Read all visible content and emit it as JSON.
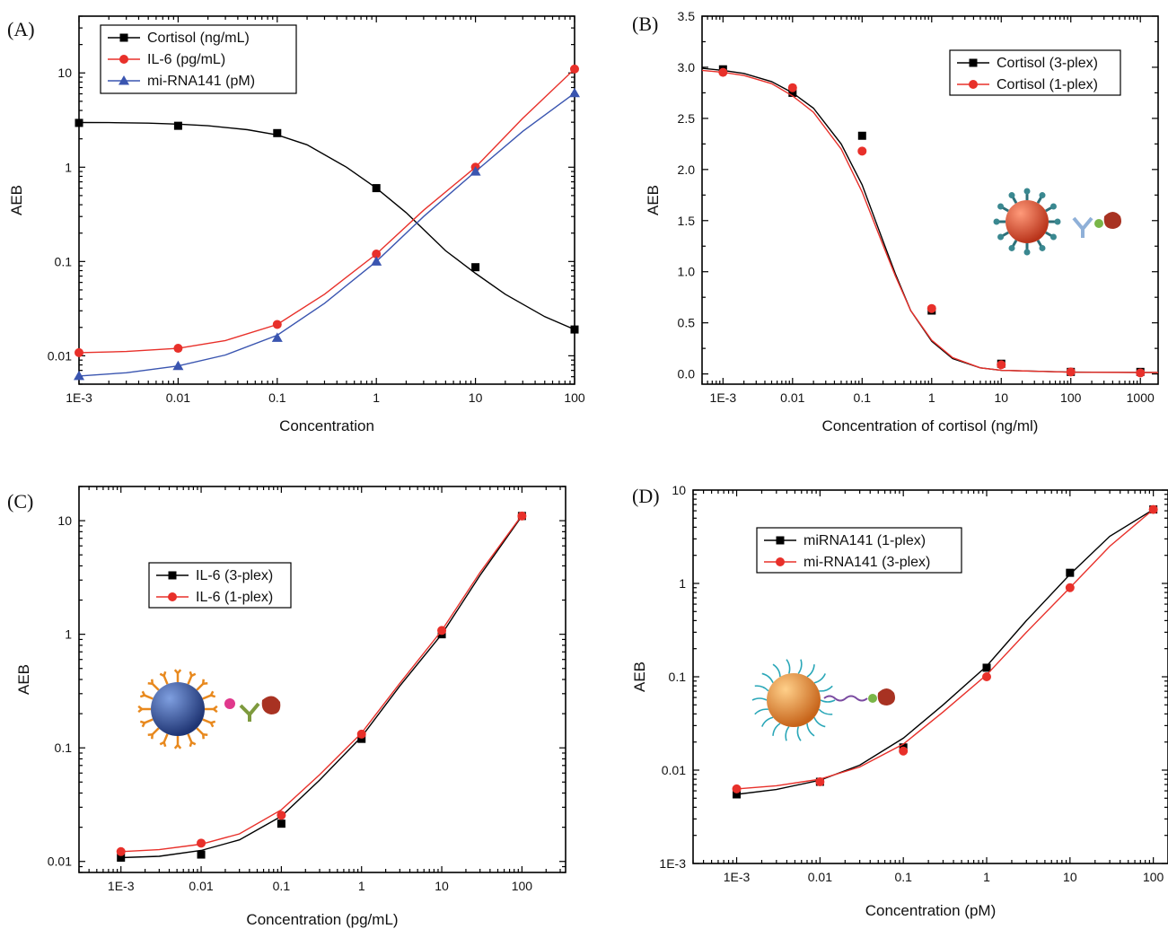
{
  "chart_data": [
    {
      "panel": "(A)",
      "type": "scatter",
      "xscale": "log",
      "yscale": "log",
      "xlim": [
        0.001,
        100
      ],
      "ylim": [
        0.005,
        40
      ],
      "xticks": [
        "1E-3",
        "0.01",
        "0.1",
        "1",
        "10",
        "100"
      ],
      "yticks": [
        "0.01",
        "0.1",
        "1",
        "10"
      ],
      "xlabel": "Concentration",
      "ylabel": "AEB",
      "legend": "top-left",
      "x": [
        0.001,
        0.01,
        0.1,
        1,
        10,
        100
      ],
      "series": [
        {
          "name": "Cortisol  (ng/mL)",
          "color": "#000000",
          "marker": "square",
          "values": [
            2.95,
            2.75,
            2.3,
            0.6,
            0.087,
            0.019
          ],
          "fit": [
            [
              0.001,
              2.98
            ],
            [
              0.002,
              2.97
            ],
            [
              0.005,
              2.93
            ],
            [
              0.01,
              2.86
            ],
            [
              0.02,
              2.75
            ],
            [
              0.05,
              2.5
            ],
            [
              0.1,
              2.2
            ],
            [
              0.2,
              1.73
            ],
            [
              0.5,
              1.0
            ],
            [
              1,
              0.6
            ],
            [
              2,
              0.33
            ],
            [
              5,
              0.13
            ],
            [
              10,
              0.075
            ],
            [
              20,
              0.045
            ],
            [
              50,
              0.026
            ],
            [
              100,
              0.019
            ]
          ]
        },
        {
          "name": "IL-6 (pg/mL)",
          "color": "#e8302a",
          "marker": "circle",
          "values": [
            0.0108,
            0.012,
            0.0215,
            0.12,
            1.0,
            11.0
          ],
          "fit": [
            [
              0.001,
              0.0108
            ],
            [
              0.003,
              0.0111
            ],
            [
              0.01,
              0.012
            ],
            [
              0.03,
              0.0145
            ],
            [
              0.1,
              0.0215
            ],
            [
              0.3,
              0.045
            ],
            [
              1,
              0.12
            ],
            [
              3,
              0.35
            ],
            [
              10,
              1.0
            ],
            [
              30,
              3.3
            ],
            [
              100,
              11.0
            ]
          ]
        },
        {
          "name": "mi-RNA141  (pM)",
          "color": "#3a55b0",
          "marker": "triangle",
          "values": [
            0.0061,
            0.0078,
            0.0155,
            0.1,
            0.9,
            6.1
          ],
          "fit": [
            [
              0.001,
              0.0061
            ],
            [
              0.003,
              0.0066
            ],
            [
              0.01,
              0.0078
            ],
            [
              0.03,
              0.0102
            ],
            [
              0.1,
              0.0165
            ],
            [
              0.3,
              0.036
            ],
            [
              1,
              0.1
            ],
            [
              3,
              0.3
            ],
            [
              10,
              0.9
            ],
            [
              30,
              2.4
            ],
            [
              100,
              6.1
            ]
          ]
        }
      ]
    },
    {
      "panel": "(B)",
      "type": "scatter",
      "xscale": "log",
      "yscale": "linear",
      "xlim": [
        0.0005,
        1800
      ],
      "ylim": [
        -0.1,
        3.5
      ],
      "xticks": [
        "1E-3",
        "0.01",
        "0.1",
        "1",
        "10",
        "100",
        "1000"
      ],
      "yticks": [
        "0.0",
        "0.5",
        "1.0",
        "1.5",
        "2.0",
        "2.5",
        "3.0",
        "3.5"
      ],
      "xlabel": "Concentration of cortisol (ng/ml)",
      "ylabel": "AEB",
      "legend": "top-right",
      "x": [
        0.001,
        0.01,
        0.1,
        1,
        10,
        100,
        1000
      ],
      "series": [
        {
          "name": "Cortisol  (3-plex)",
          "color": "#000000",
          "marker": "square",
          "values": [
            2.98,
            2.75,
            2.33,
            0.62,
            0.1,
            0.02,
            0.02
          ],
          "fit": [
            [
              0.0005,
              2.99
            ],
            [
              0.001,
              2.97
            ],
            [
              0.002,
              2.94
            ],
            [
              0.005,
              2.86
            ],
            [
              0.01,
              2.75
            ],
            [
              0.02,
              2.6
            ],
            [
              0.05,
              2.25
            ],
            [
              0.1,
              1.85
            ],
            [
              0.2,
              1.3
            ],
            [
              0.3,
              0.98
            ],
            [
              0.5,
              0.62
            ],
            [
              1,
              0.32
            ],
            [
              2,
              0.15
            ],
            [
              5,
              0.06
            ],
            [
              10,
              0.035
            ],
            [
              100,
              0.018
            ],
            [
              1000,
              0.015
            ],
            [
              1800,
              0.015
            ]
          ]
        },
        {
          "name": "Cortisol (1-plex)",
          "color": "#e8302a",
          "marker": "circle",
          "values": [
            2.95,
            2.8,
            2.18,
            0.64,
            0.09,
            0.02,
            0.01
          ],
          "fit": [
            [
              0.0005,
              2.97
            ],
            [
              0.001,
              2.95
            ],
            [
              0.002,
              2.92
            ],
            [
              0.005,
              2.84
            ],
            [
              0.01,
              2.72
            ],
            [
              0.02,
              2.56
            ],
            [
              0.05,
              2.2
            ],
            [
              0.1,
              1.78
            ],
            [
              0.2,
              1.26
            ],
            [
              0.3,
              0.96
            ],
            [
              0.5,
              0.62
            ],
            [
              1,
              0.33
            ],
            [
              2,
              0.16
            ],
            [
              5,
              0.06
            ],
            [
              10,
              0.035
            ],
            [
              100,
              0.017
            ],
            [
              1000,
              0.014
            ],
            [
              1800,
              0.014
            ]
          ]
        }
      ]
    },
    {
      "panel": "(C)",
      "type": "scatter",
      "xscale": "log",
      "yscale": "log",
      "xlim": [
        0.0003,
        350
      ],
      "ylim": [
        0.008,
        20
      ],
      "xticks": [
        "1E-3",
        "0.01",
        "0.1",
        "1",
        "10",
        "100"
      ],
      "yticks": [
        "0.01",
        "0.1",
        "1",
        "10"
      ],
      "xlabel": "Concentration (pg/mL)",
      "ylabel": "AEB",
      "legend": "upper-left",
      "x": [
        0.001,
        0.01,
        0.1,
        1,
        10,
        100
      ],
      "series": [
        {
          "name": "IL-6 (3-plex)",
          "color": "#000000",
          "marker": "square",
          "values": [
            0.0108,
            0.0115,
            0.0215,
            0.12,
            1.0,
            11.0
          ],
          "fit": [
            [
              0.001,
              0.0108
            ],
            [
              0.003,
              0.0111
            ],
            [
              0.01,
              0.0125
            ],
            [
              0.03,
              0.0155
            ],
            [
              0.1,
              0.025
            ],
            [
              0.3,
              0.052
            ],
            [
              1,
              0.125
            ],
            [
              3,
              0.35
            ],
            [
              10,
              1.0
            ],
            [
              30,
              3.3
            ],
            [
              100,
              11.0
            ]
          ]
        },
        {
          "name": "IL-6 (1-plex)",
          "color": "#e8302a",
          "marker": "circle",
          "values": [
            0.0122,
            0.0145,
            0.0255,
            0.132,
            1.08,
            11.0
          ],
          "fit": [
            [
              0.001,
              0.0122
            ],
            [
              0.003,
              0.0127
            ],
            [
              0.01,
              0.0142
            ],
            [
              0.03,
              0.0175
            ],
            [
              0.1,
              0.0285
            ],
            [
              0.3,
              0.058
            ],
            [
              1,
              0.135
            ],
            [
              3,
              0.37
            ],
            [
              10,
              1.08
            ],
            [
              30,
              3.5
            ],
            [
              100,
              11.2
            ]
          ]
        }
      ]
    },
    {
      "panel": "(D)",
      "type": "scatter",
      "xscale": "log",
      "yscale": "log",
      "xlim": [
        0.0003,
        150
      ],
      "ylim": [
        0.001,
        10
      ],
      "xticks": [
        "1E-3",
        "0.01",
        "0.1",
        "1",
        "10",
        "100"
      ],
      "yticks": [
        "1E-3",
        "0.01",
        "0.1",
        "1",
        "10"
      ],
      "xlabel": "Concentration (pM)",
      "ylabel": "AEB",
      "legend": "top-left",
      "x": [
        0.001,
        0.01,
        0.1,
        1,
        10,
        100
      ],
      "series": [
        {
          "name": "miRNA141  (1-plex)",
          "color": "#000000",
          "marker": "square",
          "values": [
            0.0055,
            0.0075,
            0.0175,
            0.125,
            1.3,
            6.2
          ],
          "fit": [
            [
              0.001,
              0.0055
            ],
            [
              0.003,
              0.0062
            ],
            [
              0.01,
              0.0078
            ],
            [
              0.03,
              0.0113
            ],
            [
              0.1,
              0.022
            ],
            [
              0.3,
              0.05
            ],
            [
              1,
              0.13
            ],
            [
              3,
              0.4
            ],
            [
              10,
              1.25
            ],
            [
              30,
              3.2
            ],
            [
              100,
              6.2
            ]
          ]
        },
        {
          "name": "mi-RNA141  (3-plex)",
          "color": "#e8302a",
          "marker": "circle",
          "values": [
            0.0063,
            0.0075,
            0.016,
            0.1,
            0.9,
            6.2
          ],
          "fit": [
            [
              0.001,
              0.0063
            ],
            [
              0.003,
              0.0068
            ],
            [
              0.01,
              0.008
            ],
            [
              0.03,
              0.0108
            ],
            [
              0.1,
              0.019
            ],
            [
              0.3,
              0.042
            ],
            [
              1,
              0.105
            ],
            [
              3,
              0.3
            ],
            [
              10,
              0.9
            ],
            [
              30,
              2.5
            ],
            [
              100,
              6.2
            ]
          ]
        }
      ]
    }
  ]
}
